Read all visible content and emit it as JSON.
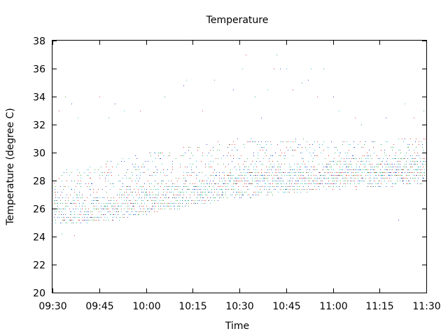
{
  "chart_data": {
    "type": "scatter",
    "title": "Temperature",
    "xlabel": "Time",
    "ylabel": "Temperature (degree C)",
    "x_ticks": [
      "09:30",
      "09:45",
      "10:00",
      "10:15",
      "10:30",
      "10:45",
      "11:00",
      "11:15",
      "11:30"
    ],
    "y_ticks": [
      "20",
      "22",
      "24",
      "26",
      "28",
      "30",
      "32",
      "34",
      "36",
      "38"
    ],
    "xlim": [
      "09:30",
      "11:30"
    ],
    "ylim": [
      20,
      38
    ],
    "grid": false,
    "legend": "none",
    "marker": "single-pixel dots, color cycles red / green / blue / cyan",
    "colors": [
      "#e8483a",
      "#3fb34f",
      "#3a56d4",
      "#39c6e0"
    ],
    "series": [
      {
        "x": [
          "09:30",
          "09:40",
          "09:50",
          "10:00",
          "10:10",
          "10:20",
          "10:30",
          "10:40",
          "10:50",
          "11:00",
          "11:10",
          "11:20",
          "11:30"
        ],
        "band_low": [
          24.8,
          25.0,
          25.2,
          25.6,
          26.0,
          26.4,
          26.8,
          27.0,
          27.2,
          27.3,
          27.5,
          27.6,
          27.8
        ],
        "band_high": [
          28.8,
          29.0,
          29.5,
          30.0,
          30.3,
          30.6,
          31.0,
          31.0,
          31.0,
          30.8,
          30.8,
          31.0,
          31.2
        ],
        "density_peak": [
          26.0,
          26.0,
          26.3,
          26.8,
          27.2,
          27.7,
          28.2,
          28.5,
          28.6,
          28.7,
          28.9,
          29.0,
          29.0
        ]
      }
    ],
    "outliers": [
      {
        "x": "09:32",
        "y": 33.0
      },
      {
        "x": "09:34",
        "y": 34.0
      },
      {
        "x": "09:36",
        "y": 33.5
      },
      {
        "x": "09:38",
        "y": 32.5
      },
      {
        "x": "09:45",
        "y": 34.0
      },
      {
        "x": "09:48",
        "y": 32.5
      },
      {
        "x": "09:50",
        "y": 33.5
      },
      {
        "x": "09:53",
        "y": 33.0
      },
      {
        "x": "09:58",
        "y": 33.0
      },
      {
        "x": "10:06",
        "y": 34.0
      },
      {
        "x": "10:12",
        "y": 34.8
      },
      {
        "x": "10:13",
        "y": 35.2
      },
      {
        "x": "10:18",
        "y": 33.0
      },
      {
        "x": "10:22",
        "y": 35.2
      },
      {
        "x": "10:28",
        "y": 34.5
      },
      {
        "x": "10:31",
        "y": 36.0
      },
      {
        "x": "10:32",
        "y": 37.0
      },
      {
        "x": "10:35",
        "y": 34.0
      },
      {
        "x": "10:37",
        "y": 32.5
      },
      {
        "x": "10:39",
        "y": 34.5
      },
      {
        "x": "10:41",
        "y": 36.0
      },
      {
        "x": "10:42",
        "y": 37.0
      },
      {
        "x": "10:43",
        "y": 36.0
      },
      {
        "x": "10:45",
        "y": 36.0
      },
      {
        "x": "10:47",
        "y": 34.5
      },
      {
        "x": "10:50",
        "y": 35.0
      },
      {
        "x": "10:52",
        "y": 35.2
      },
      {
        "x": "10:53",
        "y": 36.0
      },
      {
        "x": "10:55",
        "y": 34.0
      },
      {
        "x": "10:57",
        "y": 36.0
      },
      {
        "x": "11:00",
        "y": 34.0
      },
      {
        "x": "11:02",
        "y": 33.0
      },
      {
        "x": "11:07",
        "y": 32.5
      },
      {
        "x": "11:09",
        "y": 32.0
      },
      {
        "x": "11:17",
        "y": 32.5
      },
      {
        "x": "11:23",
        "y": 33.5
      },
      {
        "x": "11:26",
        "y": 32.5
      },
      {
        "x": "11:29",
        "y": 33.0
      },
      {
        "x": "11:21",
        "y": 25.2
      },
      {
        "x": "09:33",
        "y": 24.2
      },
      {
        "x": "09:37",
        "y": 24.1
      }
    ]
  }
}
